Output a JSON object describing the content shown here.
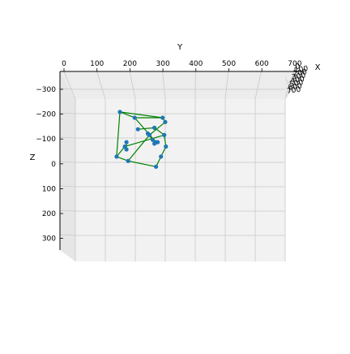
{
  "chart_data": {
    "type": "scatter",
    "projection": "3d",
    "grid": true,
    "pane_color": "#f2f2f2",
    "axes": {
      "x": {
        "label": "X",
        "ticks": [
          "0",
          "100",
          "200",
          "300",
          "400",
          "500",
          "600",
          "700"
        ]
      },
      "y": {
        "label": "Y",
        "ticks": [
          "0",
          "100",
          "200",
          "300",
          "400",
          "500",
          "600",
          "700"
        ]
      },
      "z": {
        "label": "Z",
        "ticks": [
          "−300",
          "−200",
          "−100",
          "0",
          "100",
          "200",
          "300"
        ]
      }
    },
    "points": {
      "color": "#1f77b4",
      "values": [
        {
          "y": 280,
          "z": 15
        },
        {
          "y": 295,
          "z": -20
        },
        {
          "y": 310,
          "z": -55
        },
        {
          "y": 305,
          "z": -95
        },
        {
          "y": 275,
          "z": -120
        },
        {
          "y": 225,
          "z": -115
        },
        {
          "y": 185,
          "z": -55
        },
        {
          "y": 160,
          "z": -20
        },
        {
          "y": 195,
          "z": -5
        },
        {
          "y": 215,
          "z": -155
        },
        {
          "y": 170,
          "z": -175
        },
        {
          "y": 300,
          "z": -155
        },
        {
          "y": 308,
          "z": -140
        },
        {
          "y": 260,
          "z": -95
        },
        {
          "y": 280,
          "z": -70
        },
        {
          "y": 275,
          "z": -65
        },
        {
          "y": 285,
          "z": -70
        },
        {
          "y": 190,
          "z": -70
        },
        {
          "y": 190,
          "z": -45
        },
        {
          "y": 255,
          "z": -100
        },
        {
          "y": 270,
          "z": -78
        }
      ]
    },
    "lines": {
      "color": "#008000",
      "segments": [
        [
          0,
          1
        ],
        [
          1,
          2
        ],
        [
          2,
          3
        ],
        [
          3,
          4
        ],
        [
          4,
          5
        ],
        [
          0,
          8
        ],
        [
          8,
          7
        ],
        [
          7,
          6
        ],
        [
          6,
          3
        ],
        [
          7,
          10
        ],
        [
          10,
          9
        ],
        [
          9,
          11
        ],
        [
          11,
          12
        ],
        [
          12,
          13
        ],
        [
          13,
          8
        ],
        [
          9,
          14
        ],
        [
          10,
          11
        ],
        [
          17,
          18
        ],
        [
          19,
          20
        ]
      ]
    }
  }
}
